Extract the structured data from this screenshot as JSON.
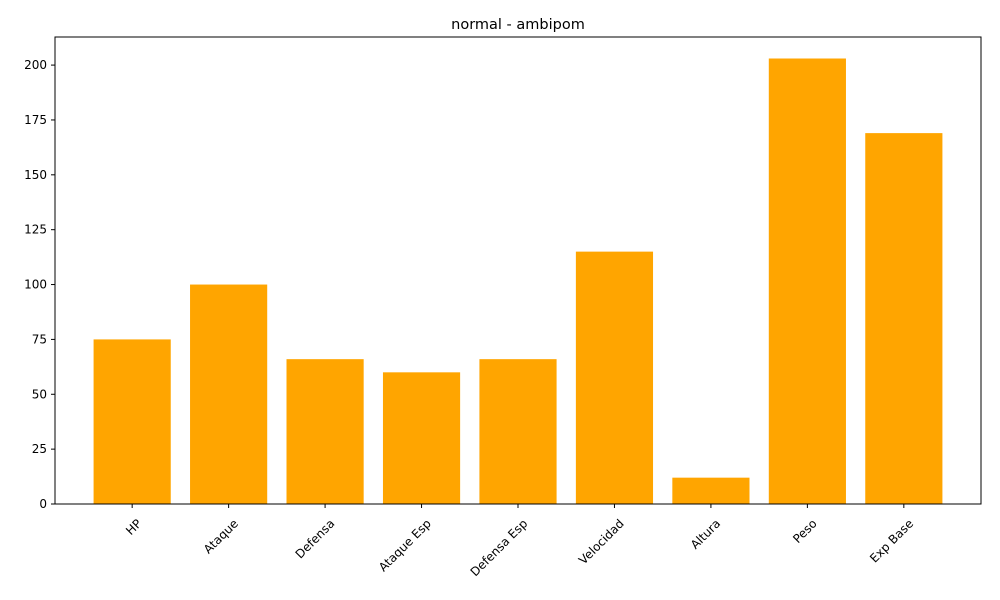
{
  "chart_data": {
    "type": "bar",
    "title": "normal - ambipom",
    "xlabel": "",
    "ylabel": "",
    "categories": [
      "HP",
      "Ataque",
      "Defensa",
      "Ataque Esp",
      "Defensa Esp",
      "Velocidad",
      "Altura",
      "Peso",
      "Exp Base"
    ],
    "values": [
      75,
      100,
      66,
      60,
      66,
      115,
      12,
      203,
      169
    ],
    "ylim": [
      0,
      212.8
    ],
    "yticks": [
      0,
      25,
      50,
      75,
      100,
      125,
      150,
      175,
      200
    ],
    "bar_color": "#ffa500",
    "grid": false,
    "x_tick_rotation_deg": 45
  }
}
